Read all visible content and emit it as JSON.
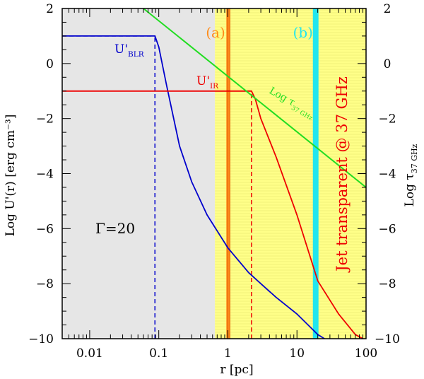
{
  "chart_data": {
    "type": "line",
    "xlabel": "r [pc]",
    "ylabel": "Log U'(r) [erg cm⁻³]",
    "ylabel_right": "Log τ",
    "ylabel_right_sub": "37 GHz",
    "x_scale": "log",
    "xlim": [
      0.004,
      100
    ],
    "ylim": [
      -10,
      2
    ],
    "x_ticks": [
      0.01,
      0.1,
      1,
      10,
      100
    ],
    "x_tick_labels": [
      "0.01",
      "0.1",
      "1",
      "10",
      "100"
    ],
    "y_ticks": [
      2,
      0,
      -2,
      -4,
      -6,
      -8,
      -10
    ],
    "y_tick_labels": [
      "2",
      "0",
      "−2",
      "−4",
      "−6",
      "−8",
      "−10"
    ],
    "regions": [
      {
        "kind": "shade",
        "x_range": [
          0.004,
          0.65
        ],
        "color": "#e6e6e6"
      },
      {
        "kind": "shade",
        "x_range": [
          0.65,
          100
        ],
        "color": "#ffff88"
      }
    ],
    "bands": [
      {
        "label": "(a)",
        "x_range": [
          0.95,
          1.08
        ],
        "color": "#ff8c1a",
        "label_color": "#ff8c1a"
      },
      {
        "label": "(b)",
        "x_range": [
          17,
          20.5
        ],
        "color": "#22e6ee",
        "label_color": "#22e6ee"
      }
    ],
    "series": [
      {
        "label": "U'",
        "label_sub": "BLR",
        "color": "#0000cc",
        "x": [
          0.004,
          0.088,
          0.1,
          0.13,
          0.2,
          0.3,
          0.5,
          1,
          2,
          3,
          5,
          10,
          20,
          25
        ],
        "y": [
          1,
          1,
          0.6,
          -0.8,
          -3.0,
          -4.3,
          -5.5,
          -6.7,
          -7.6,
          -8.0,
          -8.5,
          -9.1,
          -9.85,
          -10
        ]
      },
      {
        "label": "U'",
        "label_sub": "IR",
        "color": "#ee0000",
        "x": [
          0.004,
          2.2,
          2.5,
          3,
          5,
          10,
          20,
          40,
          70,
          90
        ],
        "y": [
          -1,
          -1,
          -1.3,
          -2.0,
          -3.4,
          -5.5,
          -7.9,
          -9.1,
          -9.85,
          -10
        ]
      },
      {
        "label": "Log τ",
        "label_sub": "37 GHz",
        "color": "#22dd22",
        "x": [
          0.06,
          100
        ],
        "y": [
          2,
          -4.5
        ]
      }
    ],
    "reference_lines": [
      {
        "orientation": "vertical",
        "x": 0.088,
        "y_range": [
          -10,
          1
        ],
        "color": "#0000cc",
        "style": "dashed"
      },
      {
        "orientation": "horizontal",
        "y": 1,
        "x_range": [
          0.004,
          0.088
        ],
        "color": "#0000cc",
        "style": "dashed"
      },
      {
        "orientation": "vertical",
        "x": 2.2,
        "y_range": [
          -10,
          -1
        ],
        "color": "#ee0000",
        "style": "dashed"
      },
      {
        "orientation": "horizontal",
        "y": -1,
        "x_range": [
          0.004,
          2.2
        ],
        "color": "#ee0000",
        "style": "dashed"
      }
    ],
    "annotations": {
      "gamma": "Γ=20",
      "jet_text": "Jet transparent @ 37 GHz"
    }
  }
}
